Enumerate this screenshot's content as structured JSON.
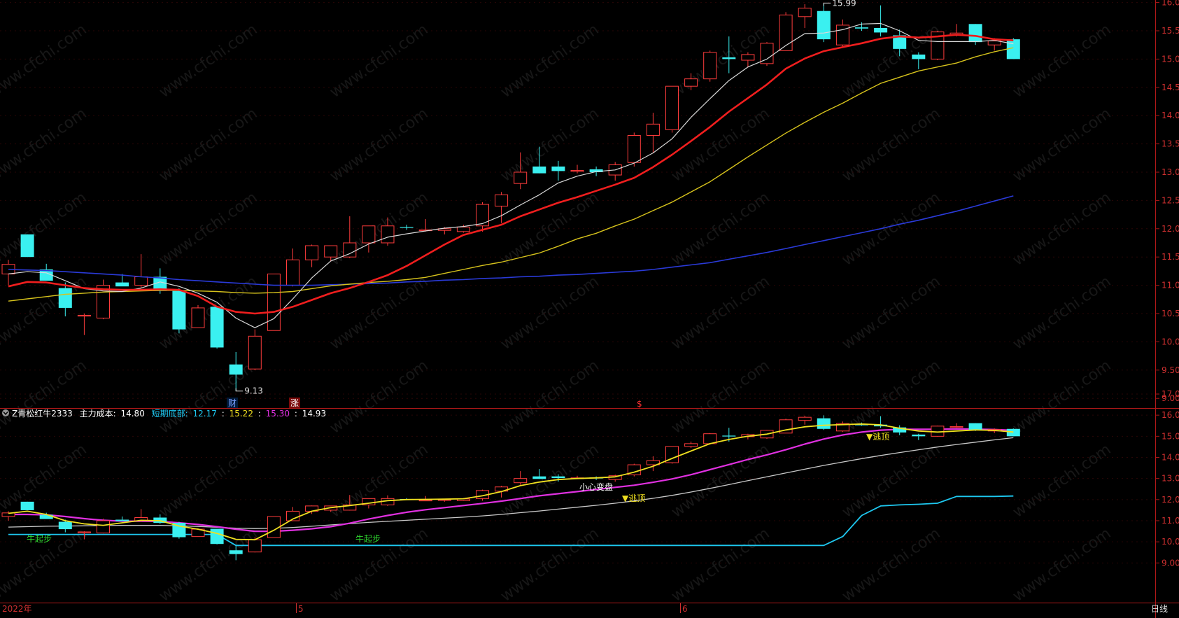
{
  "colors": {
    "up": "#ff3c3c",
    "down": "#3af0f0",
    "axis": "#b01818",
    "ma_white": "#d8d8d8",
    "ma_red": "#f01e1e",
    "ma_yellow": "#d6c21c",
    "ma_blue": "#2a3ad8",
    "ind_yellow": "#f0e020",
    "ind_magenta": "#e030e0",
    "ind_gray": "#c8c8c8",
    "ind_cyan": "#1ec8f0"
  },
  "watermark": "www.cfchi.com",
  "main_panel": {
    "y_ticks": [
      "16.00",
      "15.50",
      "15.00",
      "14.50",
      "14.00",
      "13.50",
      "13.00",
      "12.50",
      "12.00",
      "11.50",
      "11.00",
      "10.50",
      "10.00",
      "9.50",
      "9.00"
    ],
    "high_label": "15.99",
    "low_label": "9.13",
    "markers": [
      {
        "text": "财",
        "color": "#7aa0ff",
        "bg": "#001a3a"
      },
      {
        "text": "涨",
        "color": "#ffffff",
        "bg": "#7a0a0a"
      },
      {
        "text": "$",
        "color": "#ff3030",
        "bg": ""
      }
    ]
  },
  "indicator_panel": {
    "caption": {
      "name": "Z青松红牛2333",
      "cost_label": "主力成本:",
      "cost_value": "14.80",
      "bottom_label": "短期底部:",
      "v1": "12.17",
      "v2": "15.22",
      "v3": "15.30",
      "v4": "14.93"
    },
    "y_ticks": [
      "17.00",
      "16.00",
      "15.00",
      "14.00",
      "13.00",
      "12.00",
      "11.00",
      "10.00",
      "9.00"
    ],
    "signals": {
      "niu1": "牛起步",
      "niu2": "牛起步",
      "caution": "小心变盘",
      "escape1": "▼逃顶",
      "escape2": "▼逃顶"
    }
  },
  "x_axis": {
    "labels": [
      "2022年",
      "5",
      "6"
    ],
    "period": "日线"
  },
  "chart_data": {
    "type": "candlestick",
    "candles": [
      {
        "o": 11.2,
        "h": 11.45,
        "l": 11.0,
        "c": 11.37
      },
      {
        "o": 11.9,
        "h": 11.9,
        "l": 11.5,
        "c": 11.5
      },
      {
        "o": 11.28,
        "h": 11.38,
        "l": 11.1,
        "c": 11.08
      },
      {
        "o": 10.95,
        "h": 11.05,
        "l": 10.45,
        "c": 10.6
      },
      {
        "o": 10.47,
        "h": 10.5,
        "l": 10.12,
        "c": 10.47
      },
      {
        "o": 10.42,
        "h": 11.1,
        "l": 10.4,
        "c": 11.0
      },
      {
        "o": 11.05,
        "h": 11.2,
        "l": 11.0,
        "c": 10.98
      },
      {
        "o": 11.0,
        "h": 11.55,
        "l": 10.95,
        "c": 11.15
      },
      {
        "o": 11.15,
        "h": 11.3,
        "l": 10.85,
        "c": 10.9
      },
      {
        "o": 10.9,
        "h": 10.95,
        "l": 10.15,
        "c": 10.22
      },
      {
        "o": 10.25,
        "h": 10.65,
        "l": 10.25,
        "c": 10.6
      },
      {
        "o": 10.62,
        "h": 10.62,
        "l": 9.88,
        "c": 9.9
      },
      {
        "o": 9.6,
        "h": 9.82,
        "l": 9.13,
        "c": 9.42
      },
      {
        "o": 9.52,
        "h": 10.22,
        "l": 9.5,
        "c": 10.1
      },
      {
        "o": 10.2,
        "h": 11.2,
        "l": 10.2,
        "c": 11.2
      },
      {
        "o": 11.0,
        "h": 11.65,
        "l": 10.98,
        "c": 11.45
      },
      {
        "o": 11.45,
        "h": 11.72,
        "l": 11.32,
        "c": 11.7
      },
      {
        "o": 11.5,
        "h": 11.7,
        "l": 11.42,
        "c": 11.7
      },
      {
        "o": 11.5,
        "h": 12.22,
        "l": 11.48,
        "c": 11.75
      },
      {
        "o": 11.75,
        "h": 12.0,
        "l": 11.58,
        "c": 12.05
      },
      {
        "o": 11.75,
        "h": 12.2,
        "l": 11.7,
        "c": 12.05
      },
      {
        "o": 12.03,
        "h": 12.07,
        "l": 11.98,
        "c": 12.02
      },
      {
        "o": 11.97,
        "h": 12.17,
        "l": 11.95,
        "c": 11.98
      },
      {
        "o": 11.97,
        "h": 12.03,
        "l": 11.9,
        "c": 12.0
      },
      {
        "o": 11.95,
        "h": 12.07,
        "l": 11.93,
        "c": 12.03
      },
      {
        "o": 12.05,
        "h": 12.47,
        "l": 11.95,
        "c": 12.43
      },
      {
        "o": 12.4,
        "h": 12.65,
        "l": 12.1,
        "c": 12.6
      },
      {
        "o": 12.8,
        "h": 13.35,
        "l": 12.7,
        "c": 13.0
      },
      {
        "o": 13.1,
        "h": 13.45,
        "l": 12.98,
        "c": 12.98
      },
      {
        "o": 13.1,
        "h": 13.2,
        "l": 12.85,
        "c": 13.02
      },
      {
        "o": 13.03,
        "h": 13.13,
        "l": 12.98,
        "c": 13.03
      },
      {
        "o": 13.05,
        "h": 13.1,
        "l": 12.93,
        "c": 13.0
      },
      {
        "o": 12.95,
        "h": 13.18,
        "l": 12.85,
        "c": 13.13
      },
      {
        "o": 13.17,
        "h": 13.7,
        "l": 13.1,
        "c": 13.65
      },
      {
        "o": 13.65,
        "h": 14.05,
        "l": 13.35,
        "c": 13.85
      },
      {
        "o": 13.75,
        "h": 14.52,
        "l": 13.7,
        "c": 14.52
      },
      {
        "o": 14.52,
        "h": 14.75,
        "l": 14.45,
        "c": 14.65
      },
      {
        "o": 14.65,
        "h": 15.15,
        "l": 14.6,
        "c": 15.12
      },
      {
        "o": 15.03,
        "h": 15.4,
        "l": 14.75,
        "c": 15.0
      },
      {
        "o": 14.98,
        "h": 15.12,
        "l": 14.85,
        "c": 15.08
      },
      {
        "o": 14.92,
        "h": 15.3,
        "l": 14.88,
        "c": 15.28
      },
      {
        "o": 15.15,
        "h": 15.83,
        "l": 15.15,
        "c": 15.78
      },
      {
        "o": 15.75,
        "h": 15.97,
        "l": 15.55,
        "c": 15.9
      },
      {
        "o": 15.85,
        "h": 15.99,
        "l": 15.3,
        "c": 15.35
      },
      {
        "o": 15.25,
        "h": 15.7,
        "l": 15.2,
        "c": 15.6
      },
      {
        "o": 15.56,
        "h": 15.65,
        "l": 15.5,
        "c": 15.54
      },
      {
        "o": 15.55,
        "h": 15.95,
        "l": 15.4,
        "c": 15.47
      },
      {
        "o": 15.42,
        "h": 15.52,
        "l": 15.05,
        "c": 15.18
      },
      {
        "o": 15.08,
        "h": 15.12,
        "l": 14.82,
        "c": 15.0
      },
      {
        "o": 15.0,
        "h": 15.5,
        "l": 14.98,
        "c": 15.48
      },
      {
        "o": 15.43,
        "h": 15.62,
        "l": 15.4,
        "c": 15.46
      },
      {
        "o": 15.62,
        "h": 15.62,
        "l": 15.25,
        "c": 15.3
      },
      {
        "o": 15.25,
        "h": 15.37,
        "l": 15.15,
        "c": 15.32
      },
      {
        "o": 15.35,
        "h": 15.37,
        "l": 15.0,
        "c": 15.0
      }
    ],
    "ma_white": [
      11.2,
      11.24,
      11.22,
      11.08,
      10.94,
      10.9,
      10.89,
      10.95,
      11.06,
      10.98,
      10.86,
      10.7,
      10.42,
      10.25,
      10.41,
      10.76,
      11.13,
      11.43,
      11.56,
      11.73,
      11.85,
      11.91,
      11.96,
      12.01,
      12.04,
      12.09,
      12.23,
      12.42,
      12.6,
      12.81,
      12.93,
      13.01,
      13.04,
      13.16,
      13.34,
      13.59,
      13.97,
      14.3,
      14.62,
      14.86,
      15.0,
      15.24,
      15.45,
      15.46,
      15.52,
      15.62,
      15.63,
      15.5,
      15.33,
      15.31,
      15.31,
      15.31,
      15.33,
      15.27
    ],
    "ma_red": [
      10.98,
      11.06,
      11.05,
      11.0,
      10.95,
      10.93,
      10.92,
      10.92,
      10.93,
      10.92,
      10.81,
      10.62,
      10.53,
      10.5,
      10.53,
      10.62,
      10.74,
      10.86,
      10.95,
      11.06,
      11.18,
      11.34,
      11.53,
      11.72,
      11.89,
      11.98,
      12.07,
      12.22,
      12.34,
      12.46,
      12.56,
      12.67,
      12.78,
      12.9,
      13.09,
      13.31,
      13.55,
      13.8,
      14.07,
      14.31,
      14.55,
      14.83,
      15.01,
      15.14,
      15.21,
      15.28,
      15.36,
      15.4,
      15.38,
      15.4,
      15.43,
      15.41,
      15.35,
      15.33
    ],
    "ma_yellow": [
      10.72,
      10.76,
      10.8,
      10.84,
      10.86,
      10.88,
      10.89,
      10.9,
      10.91,
      10.91,
      10.9,
      10.89,
      10.87,
      10.86,
      10.87,
      10.89,
      10.94,
      10.99,
      11.02,
      11.05,
      11.07,
      11.1,
      11.14,
      11.21,
      11.28,
      11.35,
      11.41,
      11.49,
      11.57,
      11.69,
      11.82,
      11.92,
      12.05,
      12.17,
      12.32,
      12.47,
      12.65,
      12.83,
      13.05,
      13.27,
      13.48,
      13.69,
      13.88,
      14.06,
      14.22,
      14.4,
      14.57,
      14.68,
      14.79,
      14.86,
      14.93,
      15.04,
      15.13,
      15.2
    ],
    "ma_blue": [
      11.28,
      11.27,
      11.26,
      11.24,
      11.22,
      11.2,
      11.18,
      11.15,
      11.13,
      11.1,
      11.08,
      11.06,
      11.04,
      11.02,
      11.0,
      11.0,
      11.0,
      11.01,
      11.02,
      11.03,
      11.04,
      11.06,
      11.07,
      11.09,
      11.1,
      11.12,
      11.13,
      11.15,
      11.16,
      11.18,
      11.19,
      11.21,
      11.23,
      11.25,
      11.28,
      11.32,
      11.36,
      11.4,
      11.46,
      11.52,
      11.58,
      11.65,
      11.72,
      11.79,
      11.86,
      11.93,
      12.0,
      12.08,
      12.15,
      12.23,
      12.31,
      12.4,
      12.49,
      12.58
    ],
    "ind_yellow": [
      11.35,
      11.45,
      11.3,
      11.0,
      10.85,
      10.78,
      10.9,
      11.02,
      11.0,
      10.75,
      10.6,
      10.4,
      10.12,
      10.1,
      10.55,
      11.08,
      11.45,
      11.62,
      11.72,
      11.83,
      11.95,
      12.0,
      12.01,
      12.02,
      12.04,
      12.18,
      12.38,
      12.66,
      12.83,
      12.95,
      13.0,
      13.03,
      13.08,
      13.3,
      13.58,
      13.95,
      14.3,
      14.65,
      14.85,
      15.0,
      15.1,
      15.3,
      15.45,
      15.52,
      15.55,
      15.58,
      15.54,
      15.38,
      15.25,
      15.2,
      15.25,
      15.3,
      15.28,
      15.2
    ],
    "ind_magenta": [
      11.3,
      11.3,
      11.28,
      11.2,
      11.1,
      11.02,
      10.98,
      10.98,
      10.97,
      10.9,
      10.82,
      10.72,
      10.6,
      10.5,
      10.5,
      10.55,
      10.62,
      10.72,
      10.88,
      11.08,
      11.25,
      11.4,
      11.52,
      11.62,
      11.72,
      11.82,
      11.93,
      12.05,
      12.18,
      12.28,
      12.38,
      12.48,
      12.58,
      12.68,
      12.82,
      12.98,
      13.18,
      13.42,
      13.66,
      13.9,
      14.12,
      14.36,
      14.63,
      14.87,
      15.06,
      15.2,
      15.29,
      15.33,
      15.33,
      15.33,
      15.35,
      15.34,
      15.32,
      15.28
    ],
    "ind_gray": [
      10.7,
      10.72,
      10.74,
      10.75,
      10.76,
      10.77,
      10.78,
      10.78,
      10.78,
      10.76,
      10.73,
      10.69,
      10.65,
      10.63,
      10.64,
      10.68,
      10.74,
      10.8,
      10.86,
      10.92,
      10.97,
      11.02,
      11.07,
      11.12,
      11.17,
      11.23,
      11.3,
      11.38,
      11.46,
      11.55,
      11.64,
      11.73,
      11.83,
      11.94,
      12.06,
      12.2,
      12.36,
      12.53,
      12.71,
      12.9,
      13.08,
      13.26,
      13.44,
      13.62,
      13.78,
      13.94,
      14.09,
      14.23,
      14.36,
      14.49,
      14.61,
      14.72,
      14.83,
      14.93
    ],
    "ind_cyan": [
      10.35,
      10.35,
      10.35,
      10.35,
      10.35,
      10.35,
      10.35,
      10.35,
      10.35,
      10.35,
      10.35,
      10.35,
      9.83,
      9.83,
      9.83,
      9.83,
      9.83,
      9.83,
      9.83,
      9.83,
      9.83,
      9.83,
      9.83,
      9.83,
      9.83,
      9.83,
      9.83,
      9.83,
      9.83,
      9.83,
      9.83,
      9.83,
      9.83,
      9.83,
      9.83,
      9.83,
      9.83,
      9.83,
      9.83,
      9.83,
      9.83,
      9.83,
      9.83,
      9.83,
      10.25,
      11.25,
      11.7,
      11.75,
      11.78,
      11.83,
      12.15,
      12.15,
      12.15,
      12.17
    ]
  }
}
